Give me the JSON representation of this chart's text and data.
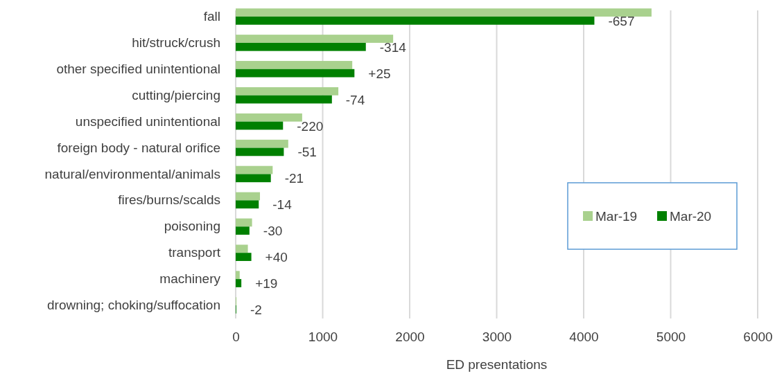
{
  "chart_data": {
    "type": "bar",
    "orientation": "horizontal",
    "xlabel": "ED presentations",
    "categories": [
      "fall",
      "hit/struck/crush",
      "other specified unintentional",
      "cutting/piercing",
      "unspecified unintentional",
      "foreign body - natural orifice",
      "natural/environmental/animals",
      "fires/burns/scalds",
      "poisoning",
      "transport",
      "machinery",
      "drowning; choking/suffocation"
    ],
    "series": [
      {
        "name": "Mar-19",
        "color": "#a9d18e",
        "values": [
          4780,
          1810,
          1340,
          1180,
          764,
          604,
          425,
          279,
          188,
          140,
          46,
          9
        ]
      },
      {
        "name": "Mar-20",
        "color": "#008000",
        "values": [
          4123,
          1496,
          1365,
          1106,
          544,
          553,
          404,
          265,
          158,
          180,
          65,
          7
        ]
      }
    ],
    "annotations": [
      "-657",
      "-314",
      "+25",
      "-74",
      "-220",
      "-51",
      "-21",
      "-14",
      "-30",
      "+40",
      "+19",
      "-2"
    ],
    "xlim": [
      0,
      6000
    ],
    "xticks": [
      0,
      1000,
      2000,
      3000,
      4000,
      5000,
      6000
    ],
    "grid": "x",
    "legend": "right"
  }
}
